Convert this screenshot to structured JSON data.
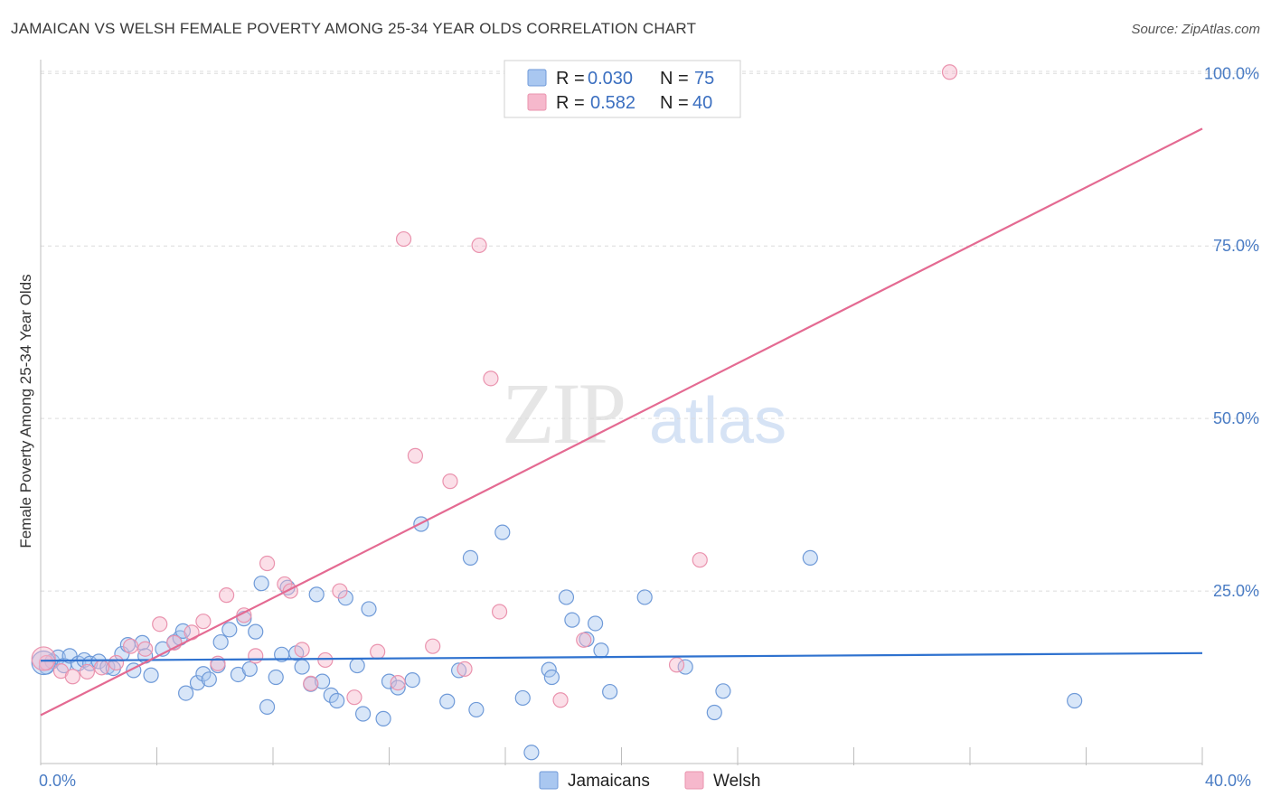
{
  "title": "JAMAICAN VS WELSH FEMALE POVERTY AMONG 25-34 YEAR OLDS CORRELATION CHART",
  "source": "Source: ZipAtlas.com",
  "watermark": {
    "zip": "ZIP",
    "atlas": "atlas"
  },
  "legend": {
    "rows": [
      {
        "r_label": "R =",
        "r_value": "0.030",
        "n_label": "N =",
        "n_value": "75",
        "color": "#a9c7f0"
      },
      {
        "r_label": "R =",
        "r_value": "0.582",
        "n_label": "N =",
        "n_value": "40",
        "color": "#f6b8cc"
      }
    ]
  },
  "bottom_legend": [
    {
      "label": "Jamaicans",
      "color": "#a9c7f0"
    },
    {
      "label": "Welsh",
      "color": "#f6b8cc"
    }
  ],
  "chart_data": {
    "type": "scatter",
    "xlabel": "",
    "ylabel": "Female Poverty Among 25-34 Year Olds",
    "xlim": [
      0,
      40
    ],
    "ylim": [
      0,
      102
    ],
    "x_tick_labels": [
      {
        "value": 0,
        "label": "0.0%"
      },
      {
        "value": 40,
        "label": "40.0%"
      }
    ],
    "y_tick_labels": [
      {
        "value": 25,
        "label": "25.0%"
      },
      {
        "value": 50,
        "label": "50.0%"
      },
      {
        "value": 75,
        "label": "75.0%"
      },
      {
        "value": 100,
        "label": "100.0%"
      }
    ],
    "grid": "horizontal dashed",
    "series": [
      {
        "name": "Jamaicans",
        "color": "#a9c7f0",
        "stroke": "#6f9ad8",
        "trend_color": "#2f72cf",
        "trend": [
          [
            0,
            14.9
          ],
          [
            40,
            16.0
          ]
        ],
        "points": [
          [
            0.2,
            14.0
          ],
          [
            0.4,
            14.8
          ],
          [
            0.6,
            15.4
          ],
          [
            0.8,
            14.2
          ],
          [
            1.0,
            15.6
          ],
          [
            1.3,
            14.5
          ],
          [
            1.5,
            15.0
          ],
          [
            1.7,
            14.5
          ],
          [
            2.0,
            14.8
          ],
          [
            2.3,
            14.0
          ],
          [
            2.5,
            13.8
          ],
          [
            2.8,
            15.9
          ],
          [
            3.0,
            17.2
          ],
          [
            3.2,
            13.5
          ],
          [
            3.5,
            17.5
          ],
          [
            3.6,
            15.6
          ],
          [
            3.8,
            12.8
          ],
          [
            4.2,
            16.6
          ],
          [
            4.6,
            17.6
          ],
          [
            4.8,
            18.2
          ],
          [
            4.9,
            19.2
          ],
          [
            5.0,
            10.2
          ],
          [
            5.4,
            11.7
          ],
          [
            5.6,
            13.0
          ],
          [
            5.8,
            12.2
          ],
          [
            6.1,
            14.2
          ],
          [
            6.2,
            17.6
          ],
          [
            6.5,
            19.4
          ],
          [
            6.8,
            12.9
          ],
          [
            7.0,
            21.0
          ],
          [
            7.2,
            13.7
          ],
          [
            7.4,
            19.1
          ],
          [
            7.6,
            26.1
          ],
          [
            7.8,
            8.2
          ],
          [
            8.1,
            12.5
          ],
          [
            8.3,
            15.8
          ],
          [
            8.5,
            25.5
          ],
          [
            8.8,
            16.0
          ],
          [
            9.0,
            14.0
          ],
          [
            9.3,
            11.5
          ],
          [
            9.5,
            24.5
          ],
          [
            9.7,
            11.9
          ],
          [
            10.0,
            9.9
          ],
          [
            10.2,
            9.1
          ],
          [
            10.5,
            24.0
          ],
          [
            10.9,
            14.2
          ],
          [
            11.1,
            7.2
          ],
          [
            11.3,
            22.4
          ],
          [
            11.8,
            6.5
          ],
          [
            12.0,
            11.9
          ],
          [
            12.3,
            11.0
          ],
          [
            12.8,
            12.1
          ],
          [
            13.1,
            34.7
          ],
          [
            14.0,
            9.0
          ],
          [
            14.4,
            13.5
          ],
          [
            14.8,
            29.8
          ],
          [
            15.0,
            7.8
          ],
          [
            15.9,
            33.5
          ],
          [
            16.6,
            9.5
          ],
          [
            16.9,
            1.6
          ],
          [
            17.5,
            13.6
          ],
          [
            17.6,
            12.5
          ],
          [
            18.1,
            24.1
          ],
          [
            18.3,
            20.8
          ],
          [
            18.8,
            18.0
          ],
          [
            19.1,
            20.3
          ],
          [
            19.3,
            16.4
          ],
          [
            19.6,
            10.4
          ],
          [
            20.8,
            24.1
          ],
          [
            22.2,
            14.0
          ],
          [
            23.2,
            7.4
          ],
          [
            23.5,
            10.5
          ],
          [
            26.5,
            29.8
          ],
          [
            35.6,
            9.1
          ],
          [
            0.1,
            14.6
          ]
        ]
      },
      {
        "name": "Welsh",
        "color": "#f6b8cc",
        "stroke": "#ea93ae",
        "trend_color": "#e46a92",
        "trend": [
          [
            0,
            7.0
          ],
          [
            40,
            92.0
          ]
        ],
        "points": [
          [
            0.2,
            14.6
          ],
          [
            0.7,
            13.4
          ],
          [
            1.1,
            12.6
          ],
          [
            1.6,
            13.3
          ],
          [
            2.1,
            13.9
          ],
          [
            2.6,
            14.6
          ],
          [
            3.1,
            17.0
          ],
          [
            3.6,
            16.6
          ],
          [
            4.1,
            20.2
          ],
          [
            4.6,
            17.5
          ],
          [
            5.2,
            19.0
          ],
          [
            5.6,
            20.6
          ],
          [
            6.1,
            14.5
          ],
          [
            6.4,
            24.4
          ],
          [
            7.0,
            21.5
          ],
          [
            7.4,
            15.6
          ],
          [
            7.8,
            29.0
          ],
          [
            8.4,
            26.0
          ],
          [
            8.6,
            25.0
          ],
          [
            9.0,
            16.5
          ],
          [
            9.3,
            11.6
          ],
          [
            9.8,
            15.0
          ],
          [
            10.3,
            25.0
          ],
          [
            10.8,
            9.6
          ],
          [
            11.6,
            16.2
          ],
          [
            12.3,
            11.7
          ],
          [
            12.5,
            76.0
          ],
          [
            12.9,
            44.6
          ],
          [
            13.5,
            17.0
          ],
          [
            14.1,
            40.9
          ],
          [
            14.6,
            13.7
          ],
          [
            15.1,
            75.1
          ],
          [
            15.5,
            55.8
          ],
          [
            15.8,
            22.0
          ],
          [
            17.9,
            9.2
          ],
          [
            18.7,
            17.9
          ],
          [
            21.9,
            14.3
          ],
          [
            22.7,
            29.5
          ],
          [
            31.3,
            100.2
          ],
          [
            0.1,
            15.2
          ]
        ]
      }
    ]
  }
}
